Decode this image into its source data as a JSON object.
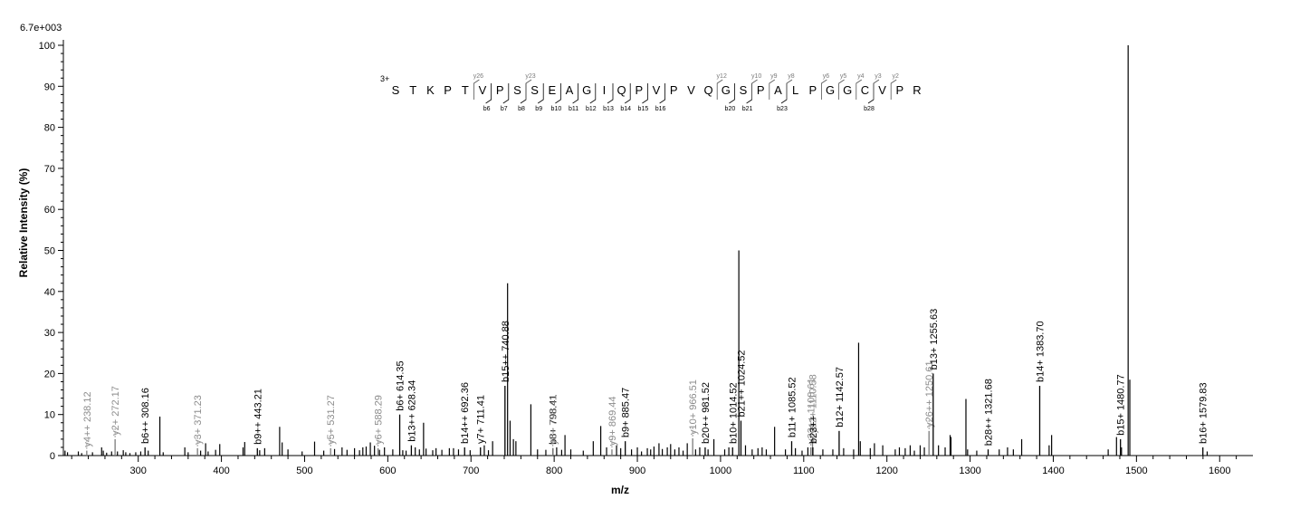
{
  "chart_data": {
    "type": "bar",
    "title": "",
    "max_intensity": "6.7e+003",
    "xlabel": "m/z",
    "ylabel": "Relative Intensity (%)",
    "xlim": [
      210,
      1640
    ],
    "ylim": [
      0,
      100
    ],
    "x_ticks": [
      300,
      400,
      500,
      600,
      700,
      800,
      900,
      1000,
      1100,
      1200,
      1300,
      1400,
      1500,
      1600
    ],
    "y_ticks": [
      0,
      10,
      20,
      30,
      40,
      50,
      60,
      70,
      80,
      90,
      100
    ],
    "precursor_charge": "3+",
    "sequence": [
      "S",
      "T",
      "K",
      "P",
      "T",
      "V",
      "P",
      "S",
      "S",
      "E",
      "A",
      "G",
      "I",
      "Q",
      "P",
      "V",
      "P",
      "V",
      "Q",
      "G",
      "S",
      "P",
      "A",
      "L",
      "P",
      "G",
      "G",
      "C",
      "V",
      "P",
      "R"
    ],
    "b_markers": [
      {
        "label": "b6",
        "after": 5
      },
      {
        "label": "b7",
        "after": 6
      },
      {
        "label": "b8",
        "after": 7
      },
      {
        "label": "b9",
        "after": 8
      },
      {
        "label": "b10",
        "after": 9
      },
      {
        "label": "b11",
        "after": 10
      },
      {
        "label": "b12",
        "after": 11
      },
      {
        "label": "b13",
        "after": 12
      },
      {
        "label": "b14",
        "after": 13
      },
      {
        "label": "b15",
        "after": 14
      },
      {
        "label": "b16",
        "after": 15
      },
      {
        "label": "b20",
        "after": 19
      },
      {
        "label": "b21",
        "after": 20
      },
      {
        "label": "b23",
        "after": 22
      },
      {
        "label": "b28",
        "after": 27
      }
    ],
    "y_markers": [
      {
        "label": "y26",
        "after": 4
      },
      {
        "label": "y23",
        "after": 7
      },
      {
        "label": "y12",
        "after": 18
      },
      {
        "label": "y10",
        "after": 20
      },
      {
        "label": "y9",
        "after": 21
      },
      {
        "label": "y8",
        "after": 22
      },
      {
        "label": "y6",
        "after": 24
      },
      {
        "label": "y5",
        "after": 25
      },
      {
        "label": "y4",
        "after": 26
      },
      {
        "label": "y3",
        "after": 27
      },
      {
        "label": "y2",
        "after": 28
      }
    ],
    "annotated_peaks": [
      {
        "mz": 238.12,
        "intensity": 1.2,
        "label": "y4++ 238.12",
        "series": "y"
      },
      {
        "mz": 272.17,
        "intensity": 4.0,
        "label": "y2+ 272.17",
        "series": "y"
      },
      {
        "mz": 308.16,
        "intensity": 2.0,
        "label": "b6++ 308.16",
        "series": "b"
      },
      {
        "mz": 371.23,
        "intensity": 1.8,
        "label": "y3+ 371.23",
        "series": "y"
      },
      {
        "mz": 443.21,
        "intensity": 1.8,
        "label": "b9++ 443.21",
        "series": "b"
      },
      {
        "mz": 531.27,
        "intensity": 1.8,
        "label": "y5+ 531.27",
        "series": "y"
      },
      {
        "mz": 588.29,
        "intensity": 1.8,
        "label": "y6+ 588.29",
        "series": "y"
      },
      {
        "mz": 614.35,
        "intensity": 10.0,
        "label": "b6+ 614.35",
        "series": "b"
      },
      {
        "mz": 628.34,
        "intensity": 2.5,
        "label": "b13++ 628.34",
        "series": "b"
      },
      {
        "mz": 692.36,
        "intensity": 2.0,
        "label": "b14++ 692.36",
        "series": "b"
      },
      {
        "mz": 711.41,
        "intensity": 2.0,
        "label": "y7+ 711.41",
        "series": "b"
      },
      {
        "mz": 740.88,
        "intensity": 17.0,
        "label": "b15++ 740.88",
        "series": "b"
      },
      {
        "mz": 798.41,
        "intensity": 1.8,
        "label": "b8+ 798.41",
        "series": "b"
      },
      {
        "mz": 798.41,
        "intensity": 1.8,
        "label": "y8+ 798.41",
        "series": "y"
      },
      {
        "mz": 869.44,
        "intensity": 1.5,
        "label": "y9+ 869.44",
        "series": "y"
      },
      {
        "mz": 885.47,
        "intensity": 3.5,
        "label": "b9+ 885.47",
        "series": "b"
      },
      {
        "mz": 966.51,
        "intensity": 4.2,
        "label": "y10+ 966.51",
        "series": "y"
      },
      {
        "mz": 981.52,
        "intensity": 2.0,
        "label": "b20++ 981.52",
        "series": "b"
      },
      {
        "mz": 1014.52,
        "intensity": 2.0,
        "label": "b10+ 1014.52",
        "series": "b"
      },
      {
        "mz": 1024.52,
        "intensity": 8.5,
        "label": "b21++ 1024.52",
        "series": "b"
      },
      {
        "mz": 1085.52,
        "intensity": 3.5,
        "label": "b11+ 1085.52",
        "series": "b"
      },
      {
        "mz": 1108.61,
        "intensity": 2.0,
        "label": "y23++ 1108.61",
        "series": "y"
      },
      {
        "mz": 1110.58,
        "intensity": 4.5,
        "label": "y12+ 1110.58",
        "series": "y"
      },
      {
        "mz": 1111.0,
        "intensity": 2.0,
        "label": "b23++",
        "series": "b"
      },
      {
        "mz": 1142.57,
        "intensity": 6.0,
        "label": "b12+ 1142.57",
        "series": "b"
      },
      {
        "mz": 1250.61,
        "intensity": 6.0,
        "label": "y26++ 1250.61",
        "series": "y"
      },
      {
        "mz": 1255.63,
        "intensity": 20.0,
        "label": "b13+ 1255.63",
        "series": "b"
      },
      {
        "mz": 1321.68,
        "intensity": 1.5,
        "label": "b28++ 1321.68",
        "series": "b"
      },
      {
        "mz": 1383.7,
        "intensity": 17.0,
        "label": "b14+ 1383.70",
        "series": "b"
      },
      {
        "mz": 1480.77,
        "intensity": 4.0,
        "label": "b15+ 1480.77",
        "series": "b"
      },
      {
        "mz": 1579.83,
        "intensity": 2.0,
        "label": "b16+ 1579.83",
        "series": "b"
      }
    ],
    "other_peaks": [
      [
        212,
        1.2
      ],
      [
        215,
        0.8
      ],
      [
        228,
        1.0
      ],
      [
        232,
        0.6
      ],
      [
        245,
        0.8
      ],
      [
        256,
        2.0
      ],
      [
        258,
        1.2
      ],
      [
        262,
        0.7
      ],
      [
        268,
        1.0
      ],
      [
        275,
        1.0
      ],
      [
        282,
        1.3
      ],
      [
        285,
        0.8
      ],
      [
        290,
        0.6
      ],
      [
        297,
        0.8
      ],
      [
        303,
        1.0
      ],
      [
        312,
        1.2
      ],
      [
        326,
        9.5
      ],
      [
        330,
        0.8
      ],
      [
        356,
        2.0
      ],
      [
        360,
        0.8
      ],
      [
        375,
        1.2
      ],
      [
        381,
        3.0
      ],
      [
        384,
        1.0
      ],
      [
        393,
        1.4
      ],
      [
        398,
        2.8
      ],
      [
        426,
        2.0
      ],
      [
        428,
        3.3
      ],
      [
        446,
        1.3
      ],
      [
        452,
        1.8
      ],
      [
        470,
        7.0
      ],
      [
        473,
        3.2
      ],
      [
        480,
        1.5
      ],
      [
        497,
        1.0
      ],
      [
        512,
        3.4
      ],
      [
        523,
        1.2
      ],
      [
        536,
        1.6
      ],
      [
        545,
        2.0
      ],
      [
        551,
        1.4
      ],
      [
        560,
        1.8
      ],
      [
        566,
        1.3
      ],
      [
        570,
        2.0
      ],
      [
        574,
        2.2
      ],
      [
        579,
        3.2
      ],
      [
        584,
        2.4
      ],
      [
        590,
        1.4
      ],
      [
        596,
        2.0
      ],
      [
        606,
        1.5
      ],
      [
        618,
        1.3
      ],
      [
        622,
        1.2
      ],
      [
        633,
        2.0
      ],
      [
        638,
        1.5
      ],
      [
        643,
        8.0
      ],
      [
        646,
        1.7
      ],
      [
        654,
        1.3
      ],
      [
        658,
        1.8
      ],
      [
        665,
        1.4
      ],
      [
        674,
        1.8
      ],
      [
        679,
        1.8
      ],
      [
        685,
        1.5
      ],
      [
        699,
        1.3
      ],
      [
        716,
        2.5
      ],
      [
        721,
        1.3
      ],
      [
        726,
        3.5
      ],
      [
        744,
        42.0
      ],
      [
        747,
        8.5
      ],
      [
        751,
        4.0
      ],
      [
        754,
        3.5
      ],
      [
        772,
        12.5
      ],
      [
        780,
        1.5
      ],
      [
        790,
        1.4
      ],
      [
        803,
        2.0
      ],
      [
        809,
        1.4
      ],
      [
        813,
        5.0
      ],
      [
        820,
        1.5
      ],
      [
        835,
        1.2
      ],
      [
        847,
        3.5
      ],
      [
        856,
        7.2
      ],
      [
        863,
        2.0
      ],
      [
        875,
        2.5
      ],
      [
        880,
        1.8
      ],
      [
        893,
        1.5
      ],
      [
        900,
        2.0
      ],
      [
        905,
        1.0
      ],
      [
        912,
        1.8
      ],
      [
        916,
        1.5
      ],
      [
        920,
        2.2
      ],
      [
        926,
        3.0
      ],
      [
        930,
        1.6
      ],
      [
        936,
        2.0
      ],
      [
        940,
        2.8
      ],
      [
        945,
        1.5
      ],
      [
        950,
        2.0
      ],
      [
        955,
        1.2
      ],
      [
        960,
        3.0
      ],
      [
        970,
        1.5
      ],
      [
        975,
        2.0
      ],
      [
        985,
        1.5
      ],
      [
        992,
        4.0
      ],
      [
        1005,
        1.5
      ],
      [
        1010,
        2.0
      ],
      [
        1022,
        50.0
      ],
      [
        1030,
        2.5
      ],
      [
        1038,
        1.5
      ],
      [
        1045,
        1.8
      ],
      [
        1050,
        2.0
      ],
      [
        1055,
        1.5
      ],
      [
        1065,
        7.0
      ],
      [
        1078,
        1.5
      ],
      [
        1090,
        1.8
      ],
      [
        1098,
        1.2
      ],
      [
        1105,
        2.0
      ],
      [
        1123,
        1.5
      ],
      [
        1135,
        1.5
      ],
      [
        1148,
        1.8
      ],
      [
        1160,
        1.5
      ],
      [
        1166,
        27.5
      ],
      [
        1168,
        3.5
      ],
      [
        1180,
        1.8
      ],
      [
        1185,
        3.0
      ],
      [
        1195,
        2.5
      ],
      [
        1210,
        1.5
      ],
      [
        1215,
        2.0
      ],
      [
        1222,
        1.8
      ],
      [
        1228,
        2.5
      ],
      [
        1233,
        1.2
      ],
      [
        1240,
        2.5
      ],
      [
        1245,
        2.0
      ],
      [
        1262,
        2.5
      ],
      [
        1270,
        2.0
      ],
      [
        1276,
        5.0
      ],
      [
        1277,
        4.5
      ],
      [
        1295,
        13.8
      ],
      [
        1297,
        1.5
      ],
      [
        1308,
        1.2
      ],
      [
        1335,
        1.5
      ],
      [
        1345,
        2.0
      ],
      [
        1352,
        1.5
      ],
      [
        1362,
        4.0
      ],
      [
        1395,
        2.5
      ],
      [
        1398,
        5.0
      ],
      [
        1466,
        1.5
      ],
      [
        1476,
        4.5
      ],
      [
        1482,
        2.0
      ],
      [
        1490,
        100.0
      ],
      [
        1492,
        18.5
      ],
      [
        1585,
        1.0
      ]
    ]
  }
}
